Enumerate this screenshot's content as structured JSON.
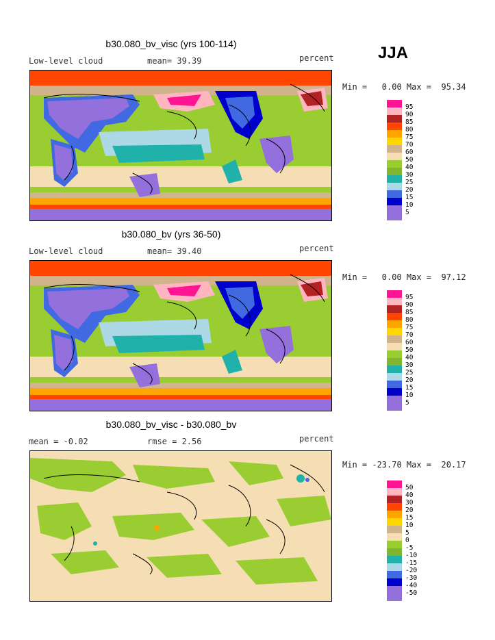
{
  "season": "JJA",
  "panels": [
    {
      "title": "b30.080_bv_visc (yrs 100-114)",
      "left": "Low-level cloud",
      "mid": "mean=  39.39",
      "right": "percent",
      "minmax": "Min =   0.00 Max =  95.34",
      "map_kind": "field",
      "colorbar_labels": [
        "95",
        "90",
        "85",
        "80",
        "75",
        "70",
        "60",
        "50",
        "40",
        "30",
        "25",
        "20",
        "15",
        "10",
        "5"
      ]
    },
    {
      "title": "b30.080_bv (yrs 36-50)",
      "left": "Low-level cloud",
      "mid": "mean=  39.40",
      "right": "percent",
      "minmax": "Min =   0.00 Max =  97.12",
      "map_kind": "field",
      "colorbar_labels": [
        "95",
        "90",
        "85",
        "80",
        "75",
        "70",
        "60",
        "50",
        "40",
        "30",
        "25",
        "20",
        "15",
        "10",
        "5"
      ]
    },
    {
      "title": "b30.080_bv_visc - b30.080_bv",
      "left": "mean =  -0.02",
      "mid": "rmse =   2.56",
      "right": "percent",
      "minmax": "Min = -23.70 Max =  20.17",
      "map_kind": "diff",
      "colorbar_labels": [
        "50",
        "40",
        "30",
        "20",
        "15",
        "10",
        "5",
        "0",
        "-5",
        "-10",
        "-15",
        "-20",
        "-30",
        "-40",
        "-50"
      ]
    }
  ],
  "colors": [
    "#ff1493",
    "#ffb6c1",
    "#b22222",
    "#ff4500",
    "#ffa500",
    "#ffd700",
    "#d2b48c",
    "#f5deb3",
    "#9acd32",
    "#7fb52f",
    "#20b2aa",
    "#add8e6",
    "#4169e1",
    "#0000cd",
    "#9370db"
  ]
}
